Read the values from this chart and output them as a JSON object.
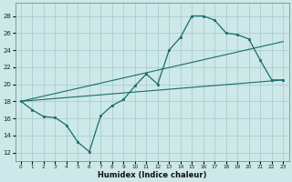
{
  "background_color": "#cde8e8",
  "grid_color": "#aacece",
  "line_color": "#1a6b6b",
  "marker_color": "#1a6b6b",
  "xlabel": "Humidex (Indice chaleur)",
  "ylabel": "",
  "xlim": [
    -0.5,
    23.5
  ],
  "ylim": [
    11,
    29.5
  ],
  "yticks": [
    12,
    14,
    16,
    18,
    20,
    22,
    24,
    26,
    28
  ],
  "xticks": [
    0,
    1,
    2,
    3,
    4,
    5,
    6,
    7,
    8,
    9,
    10,
    11,
    12,
    13,
    14,
    15,
    16,
    17,
    18,
    19,
    20,
    21,
    22,
    23
  ],
  "main_x": [
    0,
    1,
    2,
    3,
    4,
    5,
    6,
    7,
    8,
    9,
    10,
    11,
    12,
    13,
    14,
    15,
    16,
    17,
    18,
    19,
    20,
    21,
    22,
    23
  ],
  "main_y": [
    18,
    17,
    16.2,
    16.1,
    15.2,
    13.2,
    12.1,
    16.3,
    17.5,
    18.2,
    19.8,
    21.2,
    20.0,
    24.0,
    25.5,
    28.0,
    28.0,
    27.5,
    26.0,
    25.8,
    25.3,
    22.8,
    20.5,
    20.5
  ],
  "trend1_x": [
    0,
    23
  ],
  "trend1_y": [
    18,
    20.5
  ],
  "trend2_x": [
    0,
    23
  ],
  "trend2_y": [
    18,
    25.0
  ]
}
